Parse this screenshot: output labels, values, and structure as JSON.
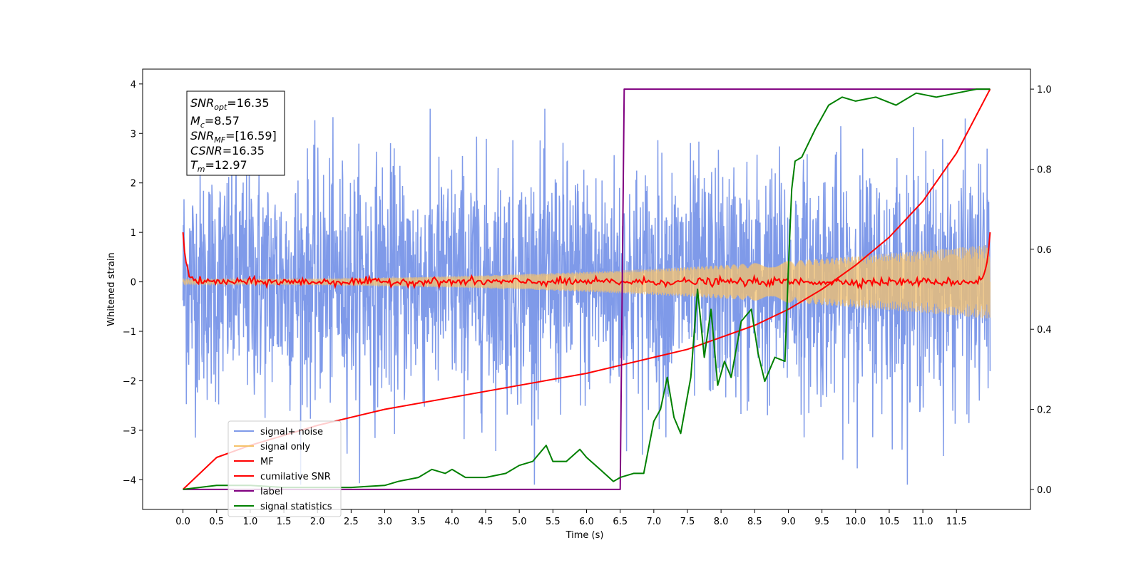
{
  "chart_data": {
    "type": "line",
    "xlabel": "Time (s)",
    "ylabel": "Whitened strain",
    "xlim": [
      -0.6,
      12.6
    ],
    "ylim": [
      -4.6,
      4.3
    ],
    "ylim_right": [
      -0.05,
      1.05
    ],
    "x_ticks": [
      "0.0",
      "0.5",
      "1.0",
      "1.5",
      "2.0",
      "2.5",
      "3.0",
      "3.5",
      "4.0",
      "4.5",
      "5.0",
      "5.5",
      "6.0",
      "6.5",
      "7.0",
      "7.5",
      "8.0",
      "8.5",
      "9.0",
      "9.5",
      "10.0",
      "10.5",
      "11.0",
      "11.5"
    ],
    "y_ticks": [
      "4",
      "3",
      "2",
      "1",
      "0",
      "−1",
      "−2",
      "−3",
      "−4"
    ],
    "y_ticks_right": [
      "1.0",
      "0.8",
      "0.6",
      "0.4",
      "0.2",
      "0.0"
    ],
    "legend_position": "lower-left",
    "info_box": {
      "snr_opt": {
        "main": "SNR",
        "sub": "opt",
        "value": "=16.35"
      },
      "mc": {
        "main": "M",
        "sub": "c",
        "value": "=8.57"
      },
      "snr_mf": {
        "main": "SNR",
        "sub": "MF",
        "value": "=[16.59]"
      },
      "csnr": {
        "main": "CSNR",
        "sub": "",
        "value": "=16.35"
      },
      "tm": {
        "main": "T",
        "sub": "m",
        "value": "=12.97"
      }
    },
    "series": [
      {
        "name": "signal+ noise",
        "color": "#7895e8",
        "axis": "left",
        "t_range": [
          0,
          12
        ],
        "typical_range": [
          -2.4,
          2.4
        ],
        "extremes": [
          -4.1,
          3.5
        ]
      },
      {
        "name": "signal only",
        "color": "#f5c26b",
        "axis": "left",
        "t_range": [
          0,
          12
        ],
        "amplitude_start": 0.05,
        "amplitude_end": 0.75
      },
      {
        "name": "MF",
        "color": "#ff0000",
        "axis": "left",
        "t_range": [
          0,
          12
        ],
        "start": 1.0,
        "baseline": 0.0,
        "end": 1.0
      },
      {
        "name": "cumilative SNR",
        "color": "#ff0000",
        "axis": "right",
        "x": [
          0,
          0.5,
          1,
          2,
          3,
          4,
          5,
          6,
          6.5,
          7,
          7.5,
          8,
          8.5,
          9,
          9.5,
          10,
          10.5,
          11,
          11.5,
          12
        ],
        "values": [
          0.0,
          0.08,
          0.11,
          0.16,
          0.2,
          0.23,
          0.26,
          0.29,
          0.31,
          0.33,
          0.35,
          0.38,
          0.41,
          0.45,
          0.5,
          0.56,
          0.63,
          0.72,
          0.84,
          1.0
        ]
      },
      {
        "name": "label",
        "color": "#800080",
        "axis": "right",
        "x": [
          0,
          6.5,
          6.56,
          12
        ],
        "values": [
          0.0,
          0.0,
          1.0,
          1.0
        ]
      },
      {
        "name": "signal statistics",
        "color": "#008000",
        "axis": "right",
        "x": [
          0,
          0.5,
          1,
          1.5,
          2,
          2.5,
          3,
          3.2,
          3.5,
          3.7,
          3.9,
          4.0,
          4.2,
          4.5,
          4.8,
          5.0,
          5.2,
          5.4,
          5.5,
          5.7,
          5.9,
          6.0,
          6.2,
          6.4,
          6.5,
          6.7,
          6.85,
          7.0,
          7.1,
          7.2,
          7.3,
          7.4,
          7.55,
          7.65,
          7.75,
          7.85,
          7.95,
          8.05,
          8.15,
          8.3,
          8.45,
          8.55,
          8.65,
          8.8,
          8.95,
          9.0,
          9.05,
          9.1,
          9.2,
          9.4,
          9.6,
          9.8,
          10.0,
          10.3,
          10.6,
          10.9,
          11.2,
          11.5,
          11.8,
          12.0
        ],
        "values": [
          0.0,
          0.01,
          0.01,
          0.005,
          0.005,
          0.005,
          0.01,
          0.02,
          0.03,
          0.05,
          0.04,
          0.05,
          0.03,
          0.03,
          0.04,
          0.06,
          0.07,
          0.11,
          0.07,
          0.07,
          0.1,
          0.08,
          0.05,
          0.02,
          0.03,
          0.04,
          0.04,
          0.17,
          0.2,
          0.28,
          0.18,
          0.14,
          0.28,
          0.5,
          0.33,
          0.45,
          0.26,
          0.32,
          0.28,
          0.42,
          0.45,
          0.34,
          0.27,
          0.33,
          0.32,
          0.55,
          0.75,
          0.82,
          0.83,
          0.9,
          0.96,
          0.98,
          0.97,
          0.98,
          0.96,
          0.99,
          0.98,
          0.99,
          1.0,
          1.0
        ]
      }
    ]
  }
}
